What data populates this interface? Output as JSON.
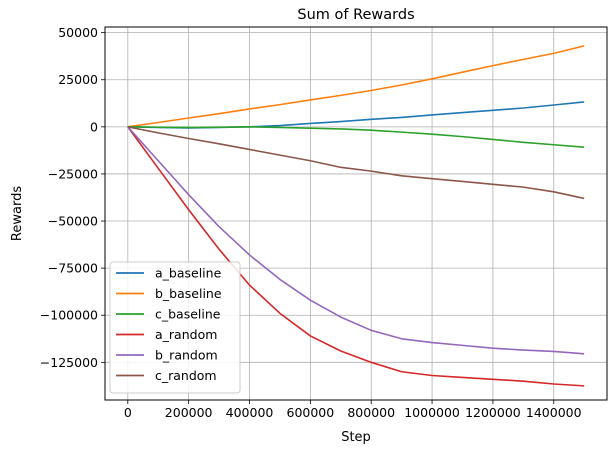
{
  "chart_data": {
    "type": "line",
    "title": "Sum of Rewards",
    "xlabel": "Step",
    "ylabel": "Rewards",
    "xlim": [
      -75000,
      1575000
    ],
    "ylim": [
      -145000,
      53000
    ],
    "xticks": [
      0,
      200000,
      400000,
      600000,
      800000,
      1000000,
      1200000,
      1400000
    ],
    "xtick_labels": [
      "0",
      "200000",
      "400000",
      "600000",
      "800000",
      "1000000",
      "1200000",
      "1400000"
    ],
    "yticks": [
      50000,
      25000,
      0,
      -25000,
      -50000,
      -75000,
      -100000,
      -125000
    ],
    "ytick_labels": [
      "50000",
      "25000",
      "0",
      "−25000",
      "−50000",
      "−75000",
      "−100000",
      "−125000"
    ],
    "grid": true,
    "legend_position": "lower-left",
    "x": [
      0,
      100000,
      200000,
      300000,
      400000,
      500000,
      600000,
      700000,
      800000,
      900000,
      1000000,
      1100000,
      1200000,
      1300000,
      1400000,
      1500000
    ],
    "series": [
      {
        "name": "a_baseline",
        "color": "#1f77b4",
        "values": [
          0,
          -300,
          -600,
          -300,
          0,
          700,
          1800,
          2800,
          4000,
          5000,
          6300,
          7600,
          8800,
          10000,
          11600,
          13200
        ]
      },
      {
        "name": "b_baseline",
        "color": "#ff7f0e",
        "values": [
          0,
          2300,
          4700,
          7000,
          9500,
          11800,
          14300,
          16700,
          19300,
          22200,
          25500,
          29000,
          32500,
          35800,
          39000,
          43000
        ]
      },
      {
        "name": "c_baseline",
        "color": "#2ca02c",
        "values": [
          0,
          -200,
          -300,
          -200,
          0,
          -300,
          -700,
          -1100,
          -1800,
          -2800,
          -3900,
          -5200,
          -6700,
          -8200,
          -9500,
          -10800
        ]
      },
      {
        "name": "a_random",
        "color": "#d62728",
        "values": [
          0,
          -22000,
          -44000,
          -65000,
          -84000,
          -99000,
          -111000,
          -119000,
          -125000,
          -130000,
          -132000,
          -133000,
          -134000,
          -135000,
          -136500,
          -137500
        ]
      },
      {
        "name": "b_random",
        "color": "#9467bd",
        "values": [
          0,
          -18000,
          -36000,
          -53000,
          -68000,
          -81000,
          -92000,
          -101000,
          -108000,
          -112500,
          -114500,
          -116000,
          -117500,
          -118500,
          -119200,
          -120500
        ]
      },
      {
        "name": "c_random",
        "color": "#8c564b",
        "values": [
          0,
          -3200,
          -6200,
          -9000,
          -12000,
          -15000,
          -18000,
          -21500,
          -23500,
          -26000,
          -27500,
          -29000,
          -30500,
          -32000,
          -34500,
          -38000
        ]
      }
    ]
  }
}
